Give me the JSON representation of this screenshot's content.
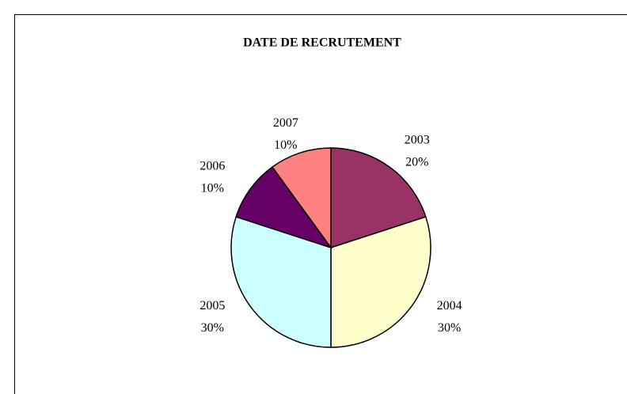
{
  "chart_data": {
    "type": "pie",
    "title": "DATE DE RECRUTEMENT",
    "categories": [
      "2003",
      "2004",
      "2005",
      "2006",
      "2007"
    ],
    "values": [
      20,
      30,
      30,
      10,
      10
    ],
    "value_labels": [
      "20%",
      "30%",
      "30%",
      "10%",
      "10%"
    ],
    "colors": [
      "#993366",
      "#ffffcc",
      "#ccffff",
      "#660066",
      "#ff8080"
    ]
  }
}
